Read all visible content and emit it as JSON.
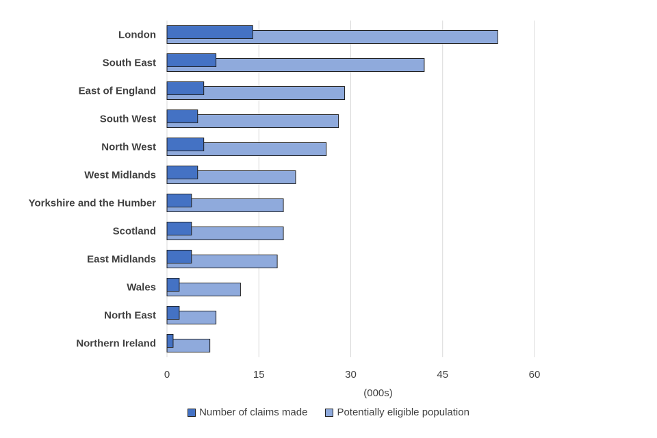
{
  "chart_data": {
    "type": "bar",
    "orientation": "horizontal",
    "categories": [
      "London",
      "South East",
      "East of England",
      "South West",
      "North West",
      "West Midlands",
      "Yorkshire and the Humber",
      "Scotland",
      "East Midlands",
      "Wales",
      "North East",
      "Northern Ireland"
    ],
    "series": [
      {
        "name": "Number of claims made",
        "color": "#4472c4",
        "values": [
          14,
          8,
          6,
          5,
          6,
          5,
          4,
          4,
          4,
          2,
          2,
          1
        ]
      },
      {
        "name": "Potentially eligible population",
        "color": "#8faadc",
        "values": [
          54,
          42,
          29,
          28,
          26,
          21,
          19,
          19,
          18,
          12,
          8,
          7
        ]
      }
    ],
    "title": "",
    "xlabel": "(000s)",
    "ylabel": "",
    "xlim": [
      0,
      60
    ],
    "xticks": [
      "0",
      "15",
      "30",
      "45",
      "60"
    ],
    "grid": true,
    "legend_position": "bottom"
  }
}
